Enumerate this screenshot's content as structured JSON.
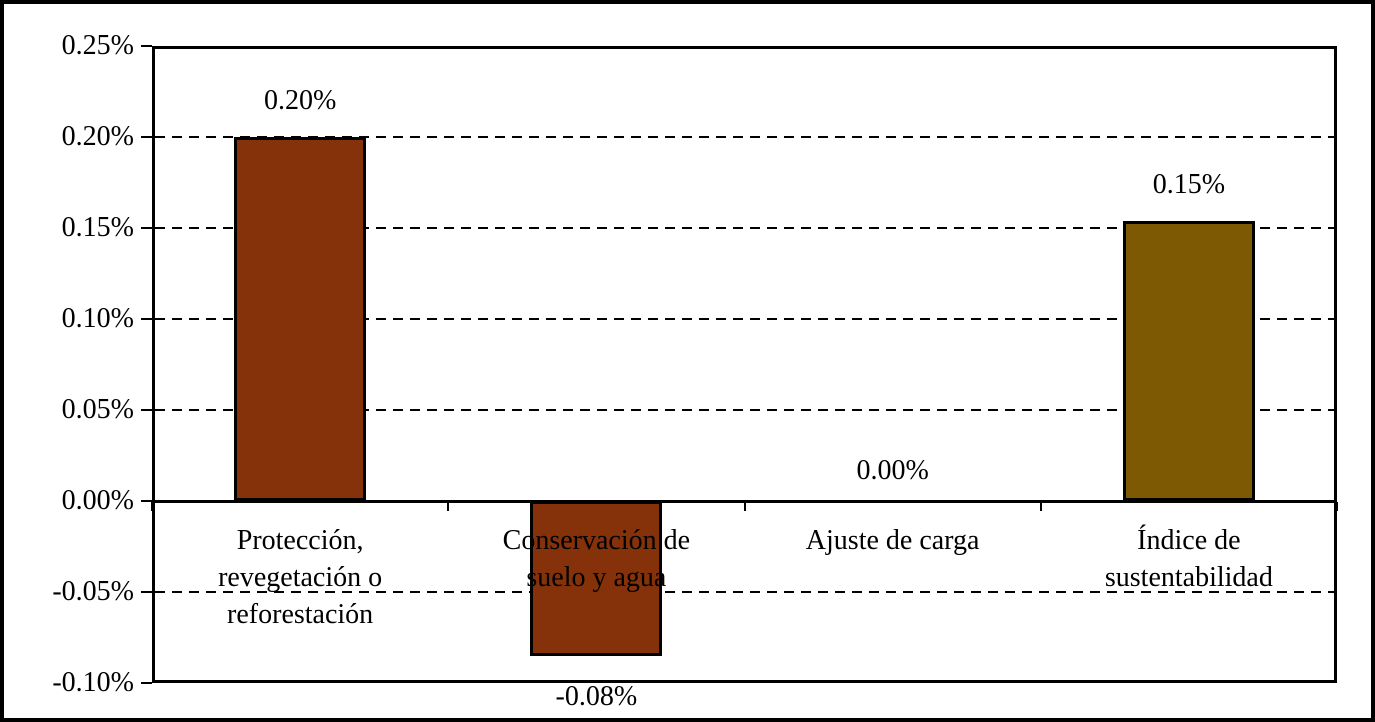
{
  "figure": {
    "background_color": "#ffffff",
    "frame_color": "#000000",
    "text_color": "#000000"
  },
  "chart_data": {
    "type": "bar",
    "title": "",
    "xlabel": "",
    "ylabel": "",
    "legend": "none",
    "grid": "horizontal-dashed",
    "ylim": [
      -0.1,
      0.25
    ],
    "y_tick_interval": 0.05,
    "y_ticks": [
      {
        "value": 0.25,
        "label": "0.25%"
      },
      {
        "value": 0.2,
        "label": "0.20%"
      },
      {
        "value": 0.15,
        "label": "0.15%"
      },
      {
        "value": 0.1,
        "label": "0.10%"
      },
      {
        "value": 0.05,
        "label": "0.05%"
      },
      {
        "value": 0.0,
        "label": "0.00%"
      },
      {
        "value": -0.05,
        "label": "-0.05%"
      },
      {
        "value": -0.1,
        "label": "-0.10%"
      }
    ],
    "dashed_gridline_values": [
      0.2,
      0.15,
      0.1,
      0.05,
      -0.05
    ],
    "zero_axis_value": 0.0,
    "bars": [
      {
        "category_lines": [
          "Protección,",
          "revegetación o",
          "reforestación"
        ],
        "value": 0.2,
        "value_label": "0.20%",
        "color": "#853109"
      },
      {
        "category_lines": [
          "Conservación de",
          "suelo y agua"
        ],
        "value": -0.085,
        "value_label": "-0.08%",
        "color": "#853109"
      },
      {
        "category_lines": [
          "Ajuste de carga"
        ],
        "value": 0.0,
        "value_label": "0.00%",
        "color": "#853109"
      },
      {
        "category_lines": [
          "Índice de",
          "sustentabilidad"
        ],
        "value": 0.154,
        "value_label": "0.15%",
        "color": "#7E5903"
      }
    ]
  }
}
